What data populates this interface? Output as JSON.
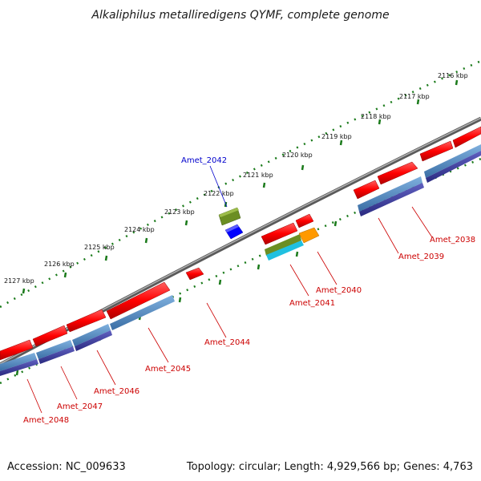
{
  "title": "Alkaliphilus metalliredigens QYMF, complete genome",
  "footer": {
    "accession": "Accession: NC_009633",
    "summary": "Topology: circular; Length: 4,929,566 bp; Genes: 4,763"
  },
  "scale_ticks": [
    "2116 kbp",
    "2117 kbp",
    "2118 kbp",
    "2119 kbp",
    "2120 kbp",
    "2121 kbp",
    "2122 kbp",
    "2123 kbp",
    "2124 kbp",
    "2125 kbp",
    "2126 kbp",
    "2127 kbp"
  ],
  "gene_labels": [
    {
      "name": "Amet_2042",
      "color": "#0000cc"
    },
    {
      "name": "Amet_2038",
      "color": "#cc0000"
    },
    {
      "name": "Amet_2039",
      "color": "#cc0000"
    },
    {
      "name": "Amet_2040",
      "color": "#cc0000"
    },
    {
      "name": "Amet_2041",
      "color": "#cc0000"
    },
    {
      "name": "Amet_2044",
      "color": "#cc0000"
    },
    {
      "name": "Amet_2045",
      "color": "#cc0000"
    },
    {
      "name": "Amet_2046",
      "color": "#cc0000"
    },
    {
      "name": "Amet_2047",
      "color": "#cc0000"
    },
    {
      "name": "Amet_2048",
      "color": "#cc0000"
    }
  ],
  "colors": {
    "gene": "#ff0000",
    "cds": "#4f86c0",
    "mrna": "#3d3d9a",
    "rrna": "#6b8e23",
    "trna": "#0000ff",
    "misc": "#ff9900",
    "other": "#20c0e0",
    "backbone": "#808080",
    "tick": "#1a7a1a"
  }
}
